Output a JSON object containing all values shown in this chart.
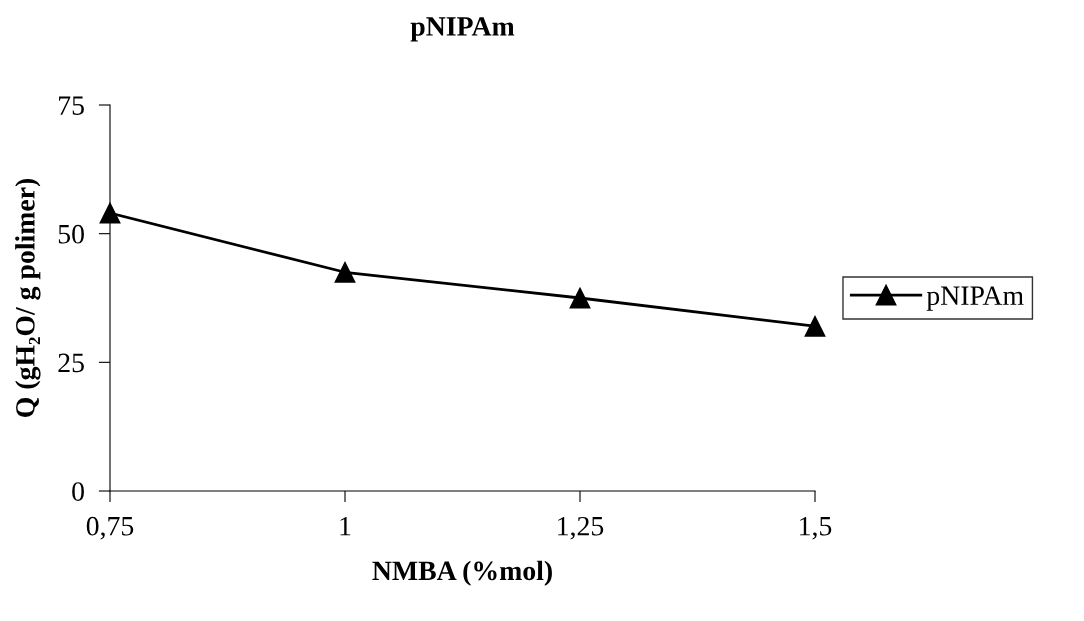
{
  "chart_data": {
    "type": "line",
    "title": "pNIPAm",
    "xlabel": "NMBA (%mol)",
    "ylabel": "Q (gH₂O/ g polimer)",
    "categories": [
      "0,75",
      "1",
      "1,25",
      "1,5"
    ],
    "series": [
      {
        "name": "pNIPAm",
        "color": "#000000",
        "values": [
          54,
          42.5,
          37.5,
          32
        ]
      }
    ],
    "ylim": [
      0,
      75
    ],
    "yticks": [
      0,
      25,
      50,
      75
    ],
    "grid": false,
    "legend": "right",
    "marker": "triangle",
    "line_style": "solid"
  }
}
